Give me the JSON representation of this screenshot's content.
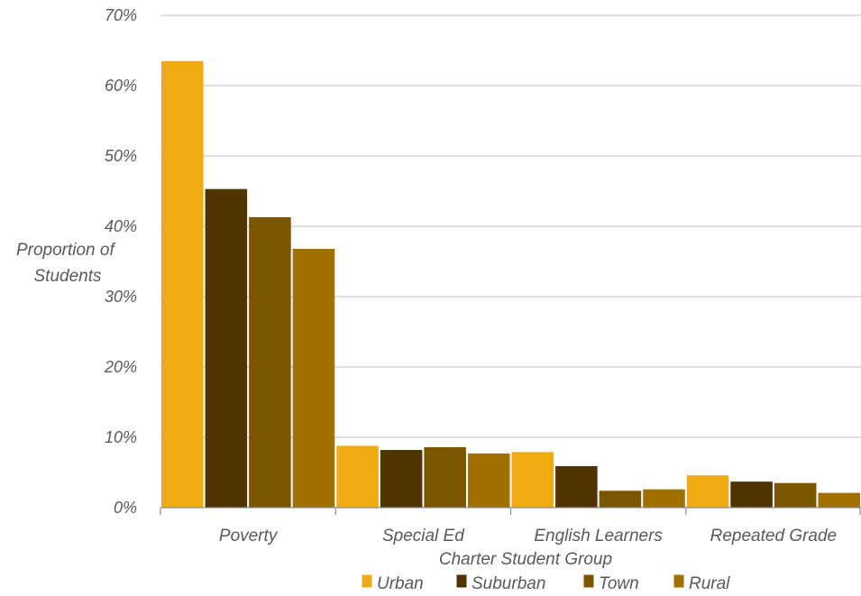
{
  "chart_data": {
    "type": "bar",
    "title": "",
    "xlabel": "Charter Student Group",
    "ylabel": "Proportion of Students",
    "ylabel_lines": [
      "Proportion of",
      "Students"
    ],
    "ylim": [
      0,
      70
    ],
    "yticks": [
      0,
      10,
      20,
      30,
      40,
      50,
      60,
      70
    ],
    "ytick_labels": [
      "0%",
      "10%",
      "20%",
      "30%",
      "40%",
      "50%",
      "60%",
      "70%"
    ],
    "grid": true,
    "legend_position": "bottom",
    "categories": [
      "Poverty",
      "Special Ed",
      "English Learners",
      "Repeated Grade"
    ],
    "series": [
      {
        "name": "Urban",
        "color": "#F0AB14",
        "values": [
          63.5,
          8.8,
          7.9,
          4.6
        ]
      },
      {
        "name": "Suburban",
        "color": "#4F3400",
        "values": [
          45.3,
          8.2,
          5.9,
          3.7
        ]
      },
      {
        "name": "Town",
        "color": "#7A5600",
        "values": [
          41.3,
          8.6,
          2.4,
          3.5
        ]
      },
      {
        "name": "Rural",
        "color": "#A07000",
        "values": [
          36.8,
          7.7,
          2.6,
          2.1
        ]
      }
    ]
  }
}
